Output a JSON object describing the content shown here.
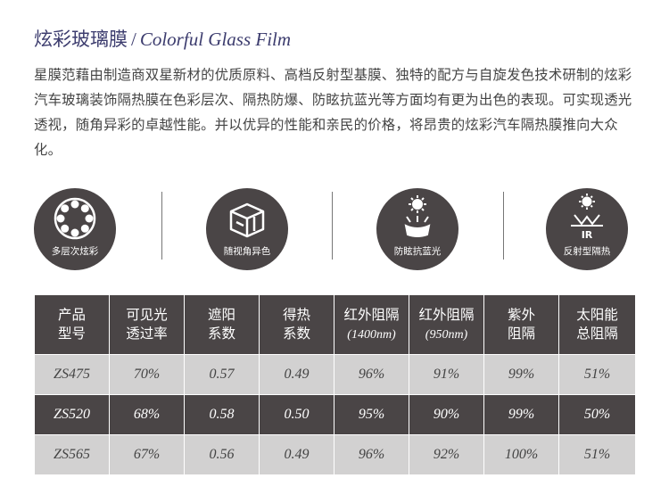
{
  "header": {
    "title_zh": "炫彩玻璃膜",
    "separator": "/",
    "title_en": "Colorful Glass Film"
  },
  "intro": {
    "text": "星膜范藉由制造商双星新材的优质原料、高档反射型基膜、独特的配方与自旋发色技术研制的炫彩汽车玻璃装饰隔热膜在色彩层次、隔热防爆、防眩抗蓝光等方面均有更为出色的表现。可实现透光透视，随角异彩的卓越性能。并以优异的性能和亲民的价格，将昂贵的炫彩汽车隔热膜推向大众化。"
  },
  "features": [
    {
      "label": "多层次炫彩",
      "icon": "rings-icon"
    },
    {
      "label": "随视角异色",
      "icon": "cube-icon"
    },
    {
      "label": "防眩抗蓝光",
      "icon": "sun-shield-icon"
    },
    {
      "label": "反射型隔热",
      "icon": "ir-reflect-icon",
      "icon_text": "IR"
    }
  ],
  "table": {
    "headers": [
      {
        "line1": "产品",
        "line2": "型号"
      },
      {
        "line1": "可见光",
        "line2": "透过率"
      },
      {
        "line1": "遮阳",
        "line2": "系数"
      },
      {
        "line1": "得热",
        "line2": "系数"
      },
      {
        "line1": "红外阻隔",
        "line2": "(1400nm)"
      },
      {
        "line1": "红外阻隔",
        "line2": "(950nm)"
      },
      {
        "line1": "紫外",
        "line2": "阻隔"
      },
      {
        "line1": "太阳能",
        "line2": "总阻隔"
      }
    ],
    "rows": [
      [
        "ZS475",
        "70%",
        "0.57",
        "0.49",
        "96%",
        "91%",
        "99%",
        "51%"
      ],
      [
        "ZS520",
        "68%",
        "0.58",
        "0.50",
        "95%",
        "90%",
        "99%",
        "50%"
      ],
      [
        "ZS565",
        "67%",
        "0.56",
        "0.49",
        "96%",
        "92%",
        "100%",
        "51%"
      ]
    ]
  },
  "colors": {
    "title": "#3c3c6e",
    "dark": "#4a4546",
    "light": "#d2d1d1"
  }
}
